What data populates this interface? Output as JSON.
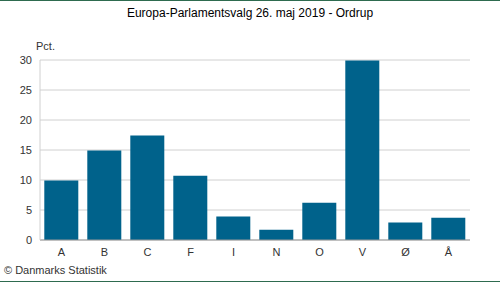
{
  "chart_data": {
    "type": "bar",
    "title": "Europa-Parlamentsvalg 26. maj 2019 - Ordrup",
    "y_label": "Pct.",
    "annotations": [
      "© Danmarks Statistik"
    ],
    "categories": [
      "A",
      "B",
      "C",
      "F",
      "I",
      "N",
      "O",
      "V",
      "Ø",
      "Å"
    ],
    "values": [
      9.9,
      14.9,
      17.4,
      10.7,
      3.9,
      1.7,
      6.2,
      29.9,
      2.9,
      3.7
    ],
    "color": "#00628b",
    "ylim": [
      0,
      30
    ],
    "yticks": [
      0,
      5,
      10,
      15,
      20,
      25,
      30
    ],
    "grid": true
  }
}
